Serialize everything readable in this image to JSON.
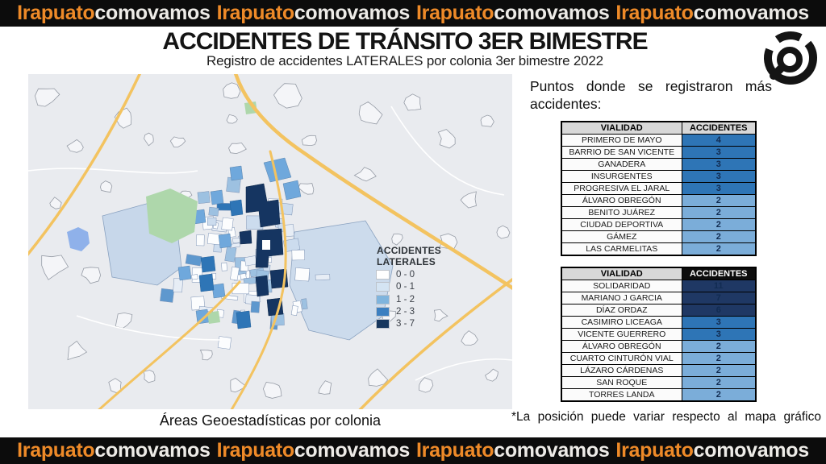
{
  "banner": {
    "repeat": 4,
    "segments": [
      {
        "text": "Irapuato",
        "color": "#ee8a28"
      },
      {
        "text": "comovamos",
        "color": "#edebe7"
      }
    ]
  },
  "header": {
    "title": "ACCIDENTES DE TRÁNSITO 3ER BIMESTRE",
    "subtitle": "Registro de accidentes LATERALES por colonia 3er bimestre 2022"
  },
  "map": {
    "caption": "Áreas Geoestadísticas por colonia",
    "legend": {
      "title": "ACCIDENTES LATERALES",
      "items": [
        {
          "label": "0 - 0",
          "color": "#ffffff"
        },
        {
          "label": "0 - 1",
          "color": "#d4e4f3"
        },
        {
          "label": "1 - 2",
          "color": "#7fb4dd"
        },
        {
          "label": "2 - 3",
          "color": "#3c7fc0"
        },
        {
          "label": "3 - 7",
          "color": "#17375e"
        }
      ]
    }
  },
  "aside": {
    "intro": "Puntos donde se registraron más accidentes:",
    "footnote": "*La posición puede variar respecto al mapa gráfico",
    "tables": [
      {
        "headers": [
          "VIALIDAD",
          "ACCIDENTES"
        ],
        "header_style": "gray",
        "rows": [
          {
            "vialidad": "PRIMERO DE MAYO",
            "accidentes": "4",
            "color": "#2e75b6"
          },
          {
            "vialidad": "BARRIO DE SAN VICENTE",
            "accidentes": "3",
            "color": "#2e75b6"
          },
          {
            "vialidad": "GANADERA",
            "accidentes": "3",
            "color": "#2e75b6"
          },
          {
            "vialidad": "INSURGENTES",
            "accidentes": "3",
            "color": "#2e75b6"
          },
          {
            "vialidad": "PROGRESIVA EL JARAL",
            "accidentes": "3",
            "color": "#2e75b6"
          },
          {
            "vialidad": "ÁLVARO OBREGÓN",
            "accidentes": "2",
            "color": "#7badd9"
          },
          {
            "vialidad": "BENITO JUÁREZ",
            "accidentes": "2",
            "color": "#7badd9"
          },
          {
            "vialidad": "CIUDAD DEPORTIVA",
            "accidentes": "2",
            "color": "#7badd9"
          },
          {
            "vialidad": "GÁMEZ",
            "accidentes": "2",
            "color": "#7badd9"
          },
          {
            "vialidad": "LAS CARMELITAS",
            "accidentes": "2",
            "color": "#7badd9"
          }
        ]
      },
      {
        "headers": [
          "VIALIDAD",
          "ACCIDENTES"
        ],
        "header_style": "black",
        "rows": [
          {
            "vialidad": "SOLIDARIDAD",
            "accidentes": "11",
            "color": "#1f3864"
          },
          {
            "vialidad": "MARIANO J GARCIA",
            "accidentes": "7",
            "color": "#1f3864"
          },
          {
            "vialidad": "DÍAZ ORDAZ",
            "accidentes": "6",
            "color": "#1f3864"
          },
          {
            "vialidad": "CASIMIRO LICEAGA",
            "accidentes": "3",
            "color": "#2e75b6"
          },
          {
            "vialidad": "VICENTE GUERRERO",
            "accidentes": "3",
            "color": "#2e75b6"
          },
          {
            "vialidad": "ÁLVARO OBREGÓN",
            "accidentes": "2",
            "color": "#7badd9"
          },
          {
            "vialidad": "CUARTO CINTURÓN VIAL",
            "accidentes": "2",
            "color": "#7badd9"
          },
          {
            "vialidad": "LÁZARO CÁRDENAS",
            "accidentes": "2",
            "color": "#7badd9"
          },
          {
            "vialidad": "SAN ROQUE",
            "accidentes": "2",
            "color": "#7badd9"
          },
          {
            "vialidad": "TORRES LANDA",
            "accidentes": "2",
            "color": "#7badd9"
          }
        ]
      }
    ]
  },
  "logo": {
    "name": "irapuato-como-vamos-logo"
  }
}
